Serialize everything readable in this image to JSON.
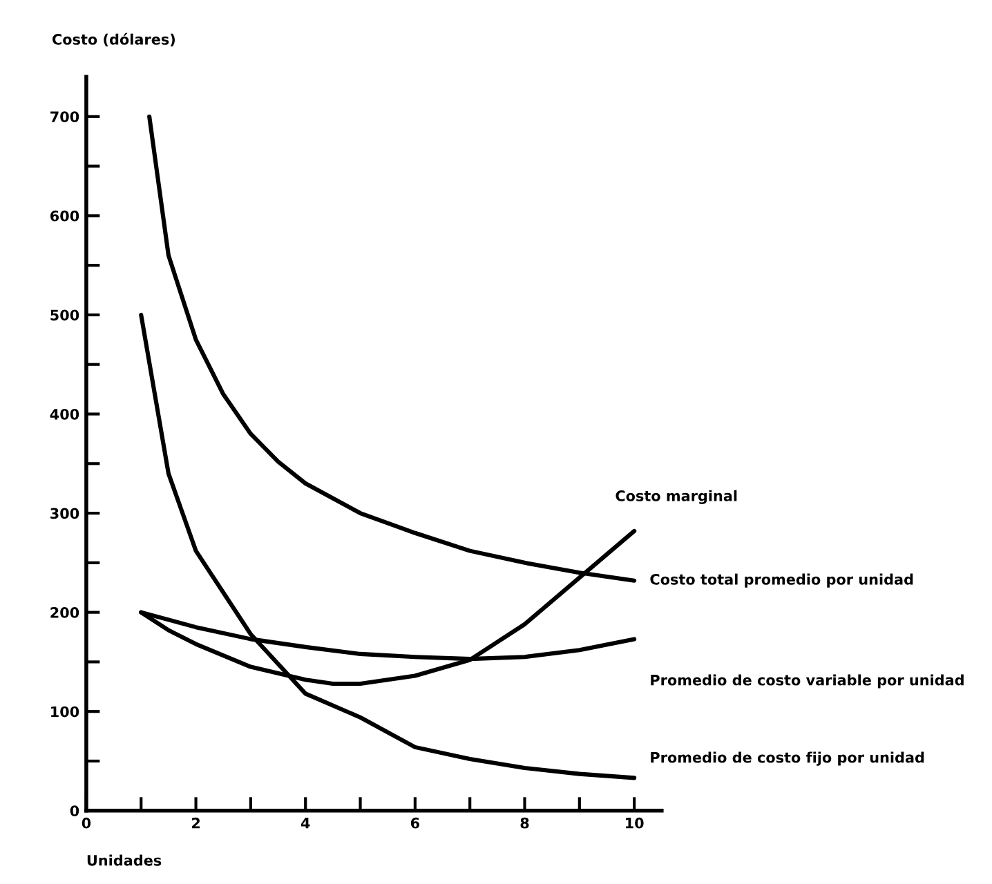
{
  "chart_data": {
    "type": "line",
    "ylabel": "Costo (dólares)",
    "xlabel": "Unidades",
    "xlim": [
      0,
      10.5
    ],
    "ylim": [
      0,
      740
    ],
    "xticks": [
      0,
      {
        "value": 1,
        "label": null
      },
      2,
      {
        "value": 3,
        "label": null
      },
      4,
      {
        "value": 5,
        "label": null
      },
      6,
      {
        "value": 7,
        "label": null
      },
      8,
      {
        "value": 9,
        "label": null
      },
      10
    ],
    "yticks": [
      0,
      {
        "value": 50,
        "label": null
      },
      100,
      {
        "value": 150,
        "label": null
      },
      200,
      {
        "value": 250,
        "label": null
      },
      300,
      {
        "value": 350,
        "label": null
      },
      400,
      {
        "value": 450,
        "label": null
      },
      500,
      {
        "value": 550,
        "label": null
      },
      600,
      {
        "value": 650,
        "label": null
      },
      700
    ],
    "grid": false,
    "legend": false,
    "marker": "none",
    "line_style": "solid",
    "series": [
      {
        "name": "Costo marginal",
        "color": "#000000",
        "x": [
          1,
          1.5,
          2,
          3,
          4,
          4.5,
          5,
          6,
          7,
          8,
          9,
          10
        ],
        "values": [
          200,
          182,
          168,
          145,
          132,
          128,
          128,
          136,
          152,
          188,
          235,
          282
        ]
      },
      {
        "name": "Costo total promedio por unidad",
        "color": "#000000",
        "x": [
          1.15,
          1.5,
          2,
          2.5,
          3,
          3.5,
          4,
          5,
          6,
          7,
          8,
          9,
          10
        ],
        "values": [
          700,
          560,
          475,
          420,
          380,
          352,
          330,
          300,
          280,
          262,
          250,
          240,
          232
        ]
      },
      {
        "name": "Promedio de costo variable por unidad",
        "color": "#000000",
        "x": [
          1,
          2,
          3,
          4,
          5,
          6,
          7,
          8,
          9,
          10
        ],
        "values": [
          200,
          185,
          173,
          165,
          158,
          155,
          153,
          155,
          162,
          173
        ]
      },
      {
        "name": "Promedio de costo fijo por unidad",
        "color": "#000000",
        "x": [
          1,
          1.5,
          2,
          3,
          4,
          5,
          6,
          7,
          8,
          9,
          10
        ],
        "values": [
          500,
          340,
          262,
          178,
          118,
          94,
          64,
          52,
          43,
          37,
          33
        ]
      }
    ]
  }
}
